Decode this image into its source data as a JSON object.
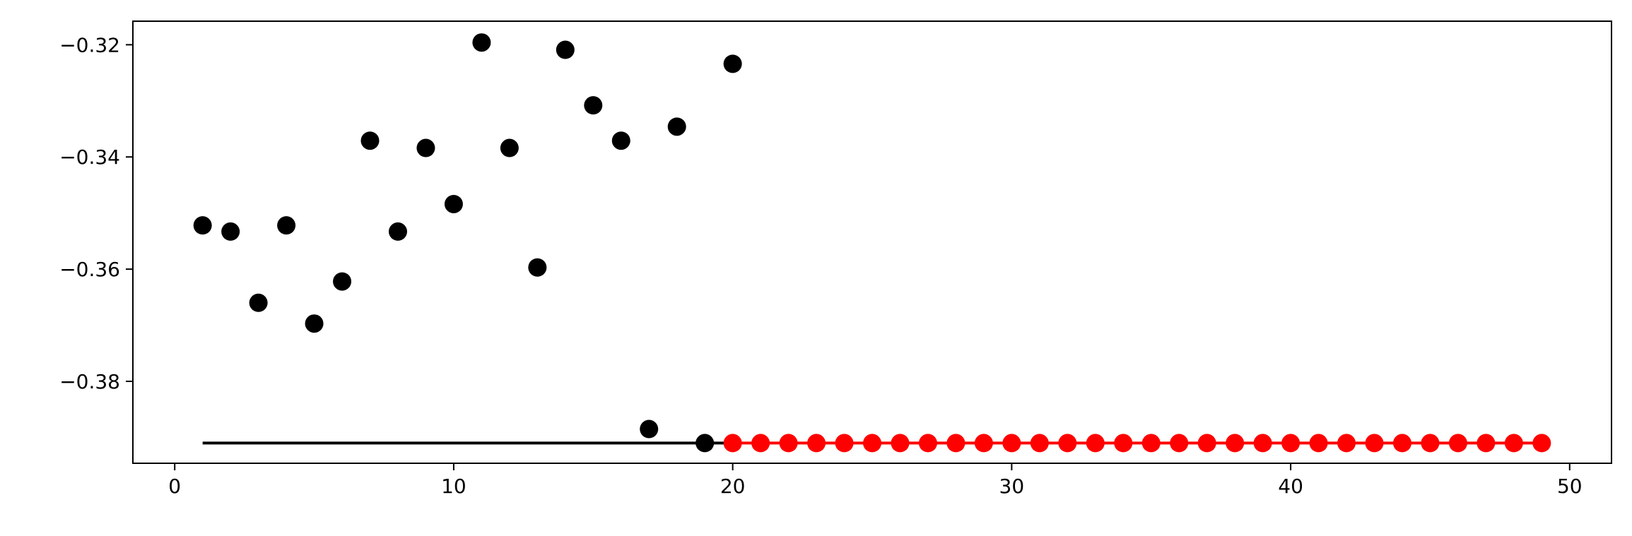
{
  "chart_data": {
    "type": "scatter",
    "title": "",
    "xlabel": "",
    "ylabel": "",
    "xlim": [
      -1.5,
      51.5
    ],
    "ylim": [
      -0.3946,
      -0.3158
    ],
    "xticks": [
      0,
      10,
      20,
      30,
      40,
      50
    ],
    "xtick_labels": [
      "0",
      "10",
      "20",
      "30",
      "40",
      "50"
    ],
    "yticks": [
      -0.32,
      -0.34,
      -0.36,
      -0.38
    ],
    "ytick_labels": [
      "−0.32",
      "−0.34",
      "−0.36",
      "−0.38"
    ],
    "grid": false,
    "series": [
      {
        "marker": "circle",
        "color": "#000000",
        "x": [
          1,
          2,
          3,
          4,
          5,
          6,
          7,
          8,
          9,
          10,
          11,
          12,
          13,
          14,
          15,
          16,
          17,
          18,
          19,
          20
        ],
        "y": [
          -0.3522,
          -0.3533,
          -0.366,
          -0.3522,
          -0.3697,
          -0.3622,
          -0.3371,
          -0.3533,
          -0.3384,
          -0.3484,
          -0.3196,
          -0.3384,
          -0.3597,
          -0.3209,
          -0.3308,
          -0.3371,
          -0.3885,
          -0.3346,
          -0.391,
          -0.3234
        ]
      },
      {
        "marker": "circle",
        "color": "#ff0000",
        "x": [
          20,
          21,
          22,
          23,
          24,
          25,
          26,
          27,
          28,
          29,
          30,
          31,
          32,
          33,
          34,
          35,
          36,
          37,
          38,
          39,
          40,
          41,
          42,
          43,
          44,
          45,
          46,
          47,
          48,
          49
        ],
        "y": [
          -0.391,
          -0.391,
          -0.391,
          -0.391,
          -0.391,
          -0.391,
          -0.391,
          -0.391,
          -0.391,
          -0.391,
          -0.391,
          -0.391,
          -0.391,
          -0.391,
          -0.391,
          -0.391,
          -0.391,
          -0.391,
          -0.391,
          -0.391,
          -0.391,
          -0.391,
          -0.391,
          -0.391,
          -0.391,
          -0.391,
          -0.391,
          -0.391,
          -0.391,
          -0.391
        ]
      }
    ],
    "lines": [
      {
        "color": "#000000",
        "x": [
          1,
          20
        ],
        "y": [
          -0.391,
          -0.391
        ]
      },
      {
        "color": "#ff0000",
        "x": [
          20,
          49
        ],
        "y": [
          -0.391,
          -0.391
        ]
      }
    ]
  }
}
